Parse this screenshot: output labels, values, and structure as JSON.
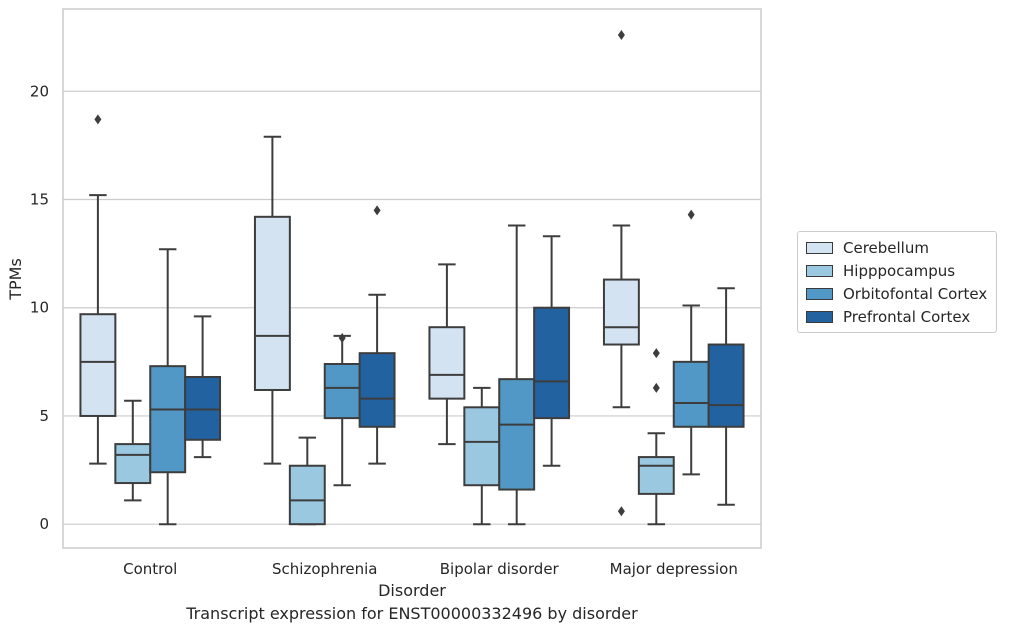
{
  "chart_data": {
    "type": "box",
    "title": "",
    "caption": "Transcript expression for ENST00000332496 by disorder",
    "xlabel": "Disorder",
    "ylabel": "TPMs",
    "ylim": [
      -1.1,
      23.8
    ],
    "yticks": [
      0,
      5,
      10,
      15,
      20
    ],
    "categories": [
      "Control",
      "Schizophrenia",
      "Bipolar disorder",
      "Major depression"
    ],
    "grid": "horizontal",
    "legend_position": "right",
    "series": [
      {
        "name": "Cerebellum",
        "color": "#d4e3f2",
        "boxes": [
          {
            "whislo": 2.8,
            "q1": 5.0,
            "med": 7.5,
            "q3": 9.7,
            "whishi": 15.2,
            "fliers": [
              18.7
            ]
          },
          {
            "whislo": 2.8,
            "q1": 6.2,
            "med": 8.7,
            "q3": 14.2,
            "whishi": 17.9,
            "fliers": []
          },
          {
            "whislo": 3.7,
            "q1": 5.8,
            "med": 6.9,
            "q3": 9.1,
            "whishi": 12.0,
            "fliers": []
          },
          {
            "whislo": 5.4,
            "q1": 8.3,
            "med": 9.1,
            "q3": 11.3,
            "whishi": 13.8,
            "fliers": [
              22.6,
              0.6
            ]
          }
        ]
      },
      {
        "name": "Hipppocampus",
        "color": "#9ac8e0",
        "boxes": [
          {
            "whislo": 1.1,
            "q1": 1.9,
            "med": 3.2,
            "q3": 3.7,
            "whishi": 5.7,
            "fliers": []
          },
          {
            "whislo": 0.0,
            "q1": 0.0,
            "med": 1.1,
            "q3": 2.7,
            "whishi": 4.0,
            "fliers": []
          },
          {
            "whislo": 0.0,
            "q1": 1.8,
            "med": 3.8,
            "q3": 5.4,
            "whishi": 6.3,
            "fliers": []
          },
          {
            "whislo": 0.0,
            "q1": 1.4,
            "med": 2.7,
            "q3": 3.1,
            "whishi": 4.2,
            "fliers": [
              7.9,
              6.3
            ]
          }
        ]
      },
      {
        "name": "Orbitofontal Cortex",
        "color": "#5198c6",
        "boxes": [
          {
            "whislo": 0.0,
            "q1": 2.4,
            "med": 5.3,
            "q3": 7.3,
            "whishi": 12.7,
            "fliers": []
          },
          {
            "whislo": 1.8,
            "q1": 4.9,
            "med": 6.3,
            "q3": 7.4,
            "whishi": 8.7,
            "fliers": [
              8.6
            ]
          },
          {
            "whislo": 0.0,
            "q1": 1.6,
            "med": 4.6,
            "q3": 6.7,
            "whishi": 13.8,
            "fliers": []
          },
          {
            "whislo": 2.3,
            "q1": 4.5,
            "med": 5.6,
            "q3": 7.5,
            "whishi": 10.1,
            "fliers": [
              14.3
            ]
          }
        ]
      },
      {
        "name": "Prefrontal Cortex",
        "color": "#2362a1",
        "boxes": [
          {
            "whislo": 3.1,
            "q1": 3.9,
            "med": 5.3,
            "q3": 6.8,
            "whishi": 9.6,
            "fliers": []
          },
          {
            "whislo": 2.8,
            "q1": 4.5,
            "med": 5.8,
            "q3": 7.9,
            "whishi": 10.6,
            "fliers": [
              14.5
            ]
          },
          {
            "whislo": 2.7,
            "q1": 4.9,
            "med": 6.6,
            "q3": 10.0,
            "whishi": 13.3,
            "fliers": []
          },
          {
            "whislo": 0.9,
            "q1": 4.5,
            "med": 5.5,
            "q3": 8.3,
            "whishi": 10.9,
            "fliers": []
          }
        ]
      }
    ]
  }
}
